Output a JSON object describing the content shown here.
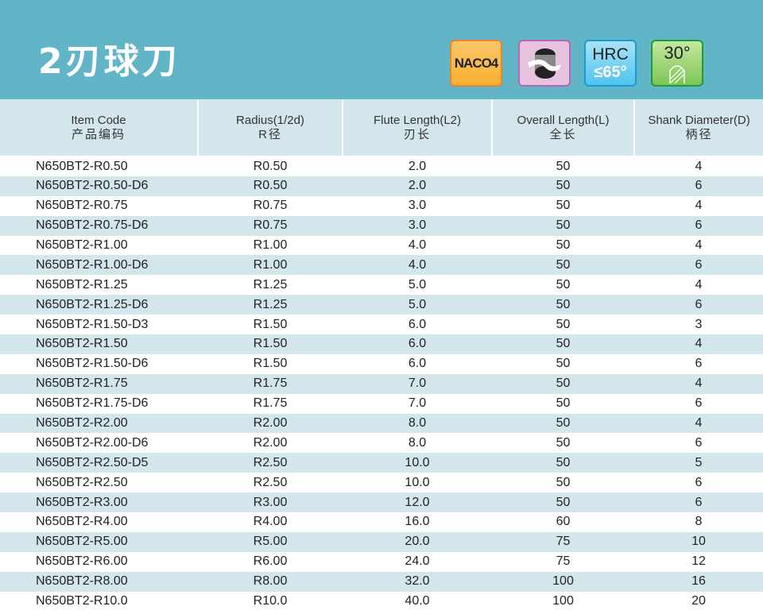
{
  "title": "2刃球刀",
  "badges": {
    "coating": "NACO4",
    "hrc_label": "HRC",
    "hrc_value": "≤65°",
    "helix": "30°",
    "icon_names": [
      "coating-badge",
      "ball-end-icon",
      "hardness-badge",
      "helix-angle-badge"
    ]
  },
  "colors": {
    "banner": "#62b5c6",
    "row_alt": "#d3e6ec"
  },
  "table": {
    "headers": [
      {
        "en": "Item Code",
        "cn": "产品编码"
      },
      {
        "en": "Radius(1/2d)",
        "cn": "R径"
      },
      {
        "en": "Flute Length(L2)",
        "cn": "刃长"
      },
      {
        "en": "Overall Length(L)",
        "cn": "全长"
      },
      {
        "en": "Shank Diameter(D)",
        "cn": "柄径"
      }
    ],
    "rows": [
      [
        "N650BT2-R0.50",
        "R0.50",
        "2.0",
        "50",
        "4"
      ],
      [
        "N650BT2-R0.50-D6",
        "R0.50",
        "2.0",
        "50",
        "6"
      ],
      [
        "N650BT2-R0.75",
        "R0.75",
        "3.0",
        "50",
        "4"
      ],
      [
        "N650BT2-R0.75-D6",
        "R0.75",
        "3.0",
        "50",
        "6"
      ],
      [
        "N650BT2-R1.00",
        "R1.00",
        "4.0",
        "50",
        "4"
      ],
      [
        "N650BT2-R1.00-D6",
        "R1.00",
        "4.0",
        "50",
        "6"
      ],
      [
        "N650BT2-R1.25",
        "R1.25",
        "5.0",
        "50",
        "4"
      ],
      [
        "N650BT2-R1.25-D6",
        "R1.25",
        "5.0",
        "50",
        "6"
      ],
      [
        "N650BT2-R1.50-D3",
        "R1.50",
        "6.0",
        "50",
        "3"
      ],
      [
        "N650BT2-R1.50",
        "R1.50",
        "6.0",
        "50",
        "4"
      ],
      [
        "N650BT2-R1.50-D6",
        "R1.50",
        "6.0",
        "50",
        "6"
      ],
      [
        "N650BT2-R1.75",
        "R1.75",
        "7.0",
        "50",
        "4"
      ],
      [
        "N650BT2-R1.75-D6",
        "R1.75",
        "7.0",
        "50",
        "6"
      ],
      [
        "N650BT2-R2.00",
        "R2.00",
        "8.0",
        "50",
        "4"
      ],
      [
        "N650BT2-R2.00-D6",
        "R2.00",
        "8.0",
        "50",
        "6"
      ],
      [
        "N650BT2-R2.50-D5",
        "R2.50",
        "10.0",
        "50",
        "5"
      ],
      [
        "N650BT2-R2.50",
        "R2.50",
        "10.0",
        "50",
        "6"
      ],
      [
        "N650BT2-R3.00",
        "R3.00",
        "12.0",
        "50",
        "6"
      ],
      [
        "N650BT2-R4.00",
        "R4.00",
        "16.0",
        "60",
        "8"
      ],
      [
        "N650BT2-R5.00",
        "R5.00",
        "20.0",
        "75",
        "10"
      ],
      [
        "N650BT2-R6.00",
        "R6.00",
        "24.0",
        "75",
        "12"
      ],
      [
        "N650BT2-R8.00",
        "R8.00",
        "32.0",
        "100",
        "16"
      ],
      [
        "N650BT2-R10.0",
        "R10.0",
        "40.0",
        "100",
        "20"
      ]
    ]
  }
}
